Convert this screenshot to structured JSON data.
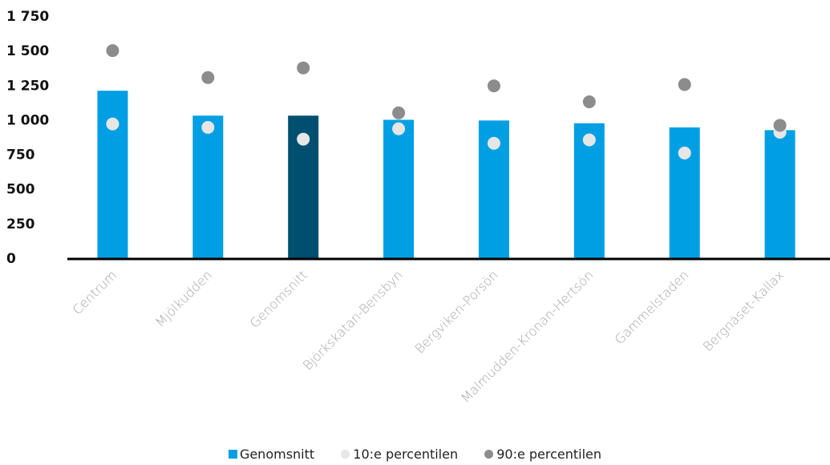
{
  "chart_data": {
    "type": "bar",
    "categories": [
      "Centrum",
      "Mjölkudden",
      "Genomsnitt",
      "Björkskatan-Bensbyn",
      "Bergviken-Porsön",
      "Malmudden-Kronan-Hertsön",
      "Gammelstaden",
      "Bergnäset-Kallax"
    ],
    "series": [
      {
        "name": "Genomsnitt",
        "type": "bar",
        "values": [
          1210,
          1030,
          1030,
          1000,
          995,
          975,
          945,
          925
        ]
      },
      {
        "name": "10:e percentilen",
        "type": "scatter",
        "values": [
          970,
          945,
          860,
          935,
          830,
          855,
          760,
          910
        ]
      },
      {
        "name": "90:e percentilen",
        "type": "scatter",
        "values": [
          1500,
          1305,
          1375,
          1050,
          1245,
          1130,
          1255,
          960
        ]
      }
    ],
    "highlight_category": "Genomsnitt",
    "yticks": [
      "0",
      "250",
      "500",
      "750",
      "1 000",
      "1 250",
      "1 500",
      "1 750"
    ],
    "ylim": [
      0,
      1750
    ],
    "grid": false,
    "legend_position": "bottom",
    "colors": {
      "bar": "#009FE3",
      "bar_highlight": "#004F71",
      "p10": "#E6E6E6",
      "p90": "#8C8C8C",
      "axis": "#000000"
    }
  }
}
